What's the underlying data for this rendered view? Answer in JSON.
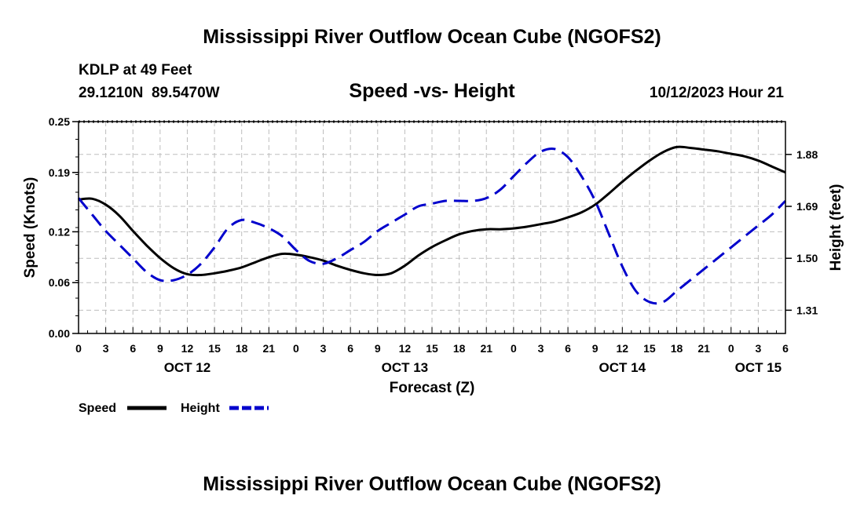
{
  "header": {
    "title": "Mississippi River Outflow Ocean Cube (NGOFS2)",
    "station": "KDLP at 49 Feet",
    "coords": "29.1210N  89.5470W",
    "subtitle": "Speed -vs- Height",
    "timestamp": "10/12/2023 Hour 21",
    "footer_title": "Mississippi River Outflow Ocean Cube (NGOFS2)"
  },
  "chart_data": {
    "type": "line",
    "xlabel": "Forecast (Z)",
    "ylabel": "Speed (Knots)",
    "y2label": "Height (feet)",
    "xlim": [
      0,
      78
    ],
    "ylim": [
      0,
      0.25
    ],
    "y2lim": [
      1.225,
      2.0
    ],
    "x_ticks": [
      0,
      3,
      6,
      9,
      12,
      15,
      18,
      21,
      24,
      27,
      30,
      33,
      36,
      39,
      42,
      45,
      48,
      51,
      54,
      57,
      60,
      63,
      66,
      69,
      72,
      75,
      78
    ],
    "x_tick_labels": [
      "0",
      "3",
      "6",
      "9",
      "12",
      "15",
      "18",
      "21",
      "0",
      "3",
      "6",
      "9",
      "12",
      "15",
      "18",
      "21",
      "0",
      "3",
      "6",
      "9",
      "12",
      "15",
      "18",
      "21",
      "0",
      "3",
      "6"
    ],
    "y_ticks": [
      0.0,
      0.06,
      0.12,
      0.19,
      0.25
    ],
    "y_tick_labels": [
      "0.00",
      "0.06",
      "0.12",
      "0.19",
      "0.25"
    ],
    "y2_ticks": [
      1.31,
      1.5,
      1.69,
      1.88
    ],
    "y2_tick_labels": [
      "1.31",
      "1.50",
      "1.69",
      "1.88"
    ],
    "day_labels": [
      {
        "x": 12,
        "label": "OCT 12"
      },
      {
        "x": 36,
        "label": "OCT 13"
      },
      {
        "x": 60,
        "label": "OCT 14"
      },
      {
        "x": 75,
        "label": "OCT 15"
      }
    ],
    "grid": true,
    "series": [
      {
        "name": "Speed",
        "axis": "left",
        "color": "#000000",
        "style": "solid",
        "x": [
          0,
          1.5,
          3,
          4.5,
          6,
          7.5,
          9,
          10.5,
          12,
          13.5,
          15,
          16.5,
          18,
          19.5,
          21,
          22.5,
          24,
          25.5,
          27,
          28.5,
          30,
          31.5,
          33,
          34.5,
          36,
          37.5,
          39,
          40.5,
          42,
          43.5,
          45,
          46.5,
          48,
          49.5,
          51,
          52.5,
          54,
          55.5,
          57,
          58.5,
          60,
          61.5,
          63,
          64.5,
          66,
          67.5,
          69,
          70.5,
          72,
          73.5,
          75,
          76.5,
          78
        ],
        "values": [
          0.158,
          0.159,
          0.152,
          0.139,
          0.121,
          0.104,
          0.089,
          0.077,
          0.07,
          0.069,
          0.071,
          0.074,
          0.078,
          0.084,
          0.09,
          0.094,
          0.093,
          0.09,
          0.086,
          0.08,
          0.075,
          0.071,
          0.069,
          0.071,
          0.08,
          0.092,
          0.102,
          0.11,
          0.117,
          0.121,
          0.123,
          0.123,
          0.124,
          0.126,
          0.129,
          0.132,
          0.137,
          0.143,
          0.152,
          0.165,
          0.179,
          0.192,
          0.204,
          0.214,
          0.22,
          0.219,
          0.217,
          0.215,
          0.212,
          0.209,
          0.204,
          0.197,
          0.19
        ]
      },
      {
        "name": "Height",
        "axis": "right",
        "color": "#0000cc",
        "style": "dashed",
        "x": [
          0,
          1.5,
          3,
          4.5,
          6,
          7.5,
          9,
          10.5,
          12,
          13.5,
          15,
          16.5,
          18,
          19.5,
          21,
          22.5,
          24,
          25.5,
          27,
          28.5,
          30,
          31.5,
          33,
          34.5,
          36,
          37.5,
          39,
          40.5,
          42,
          43.5,
          45,
          46.5,
          48,
          49.5,
          51,
          52.5,
          54,
          55.5,
          57,
          58.5,
          60,
          61.5,
          63,
          64.5,
          66,
          67.5,
          69,
          70.5,
          72,
          73.5,
          75,
          76.5,
          78
        ],
        "values": [
          1.72,
          1.66,
          1.6,
          1.55,
          1.5,
          1.45,
          1.42,
          1.42,
          1.44,
          1.48,
          1.54,
          1.61,
          1.64,
          1.63,
          1.61,
          1.58,
          1.53,
          1.49,
          1.48,
          1.5,
          1.53,
          1.56,
          1.6,
          1.63,
          1.66,
          1.69,
          1.7,
          1.71,
          1.71,
          1.71,
          1.72,
          1.75,
          1.8,
          1.85,
          1.89,
          1.9,
          1.87,
          1.8,
          1.71,
          1.59,
          1.47,
          1.38,
          1.34,
          1.34,
          1.38,
          1.42,
          1.46,
          1.5,
          1.54,
          1.58,
          1.62,
          1.66,
          1.71
        ]
      }
    ],
    "legend": [
      {
        "label": "Speed",
        "color": "#000000",
        "style": "solid"
      },
      {
        "label": "Height",
        "color": "#0000cc",
        "style": "dashed"
      }
    ]
  }
}
